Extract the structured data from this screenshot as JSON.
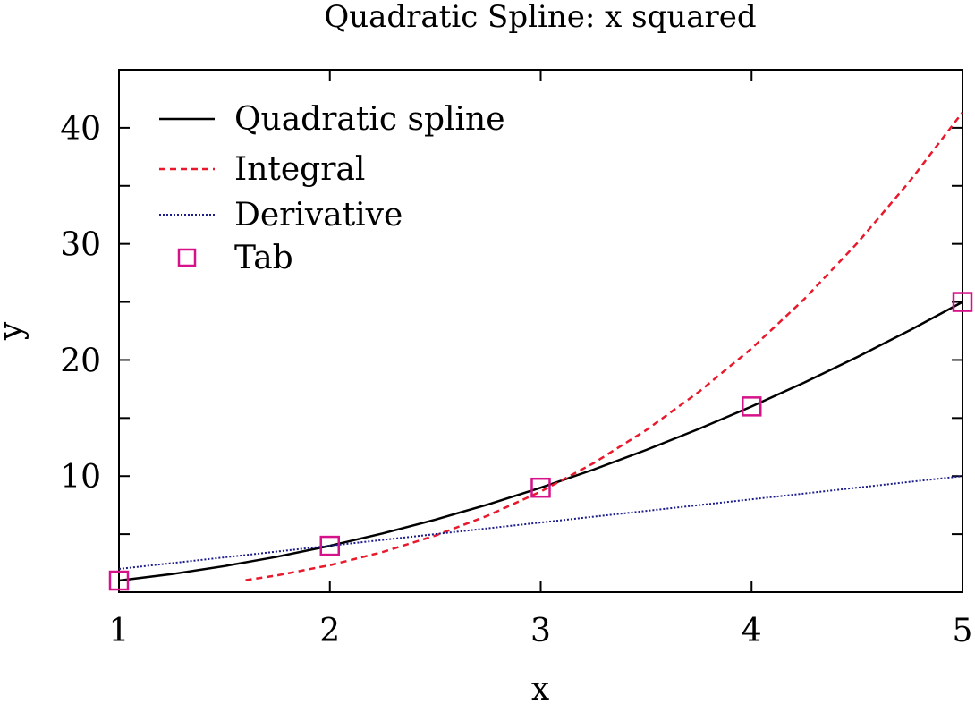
{
  "chart_data": {
    "type": "line",
    "title": "Quadratic Spline: x squared",
    "xlabel": "x",
    "ylabel": "y",
    "xlim": [
      1,
      5
    ],
    "ylim": [
      0,
      45
    ],
    "x_ticks": [
      1,
      2,
      3,
      4,
      5
    ],
    "y_ticks": [
      10,
      20,
      30,
      40
    ],
    "y_minor_ticks": [
      5,
      15,
      25,
      35
    ],
    "grid": false,
    "legend_position": "top-left",
    "series": [
      {
        "name": "Quadratic spline",
        "kind": "line",
        "color": "#000000",
        "dash": "solid",
        "x": [
          1.0,
          1.25,
          1.5,
          1.75,
          2.0,
          2.25,
          2.5,
          2.75,
          3.0,
          3.25,
          3.5,
          3.75,
          4.0,
          4.25,
          4.5,
          4.75,
          5.0
        ],
        "y": [
          1.0,
          1.56,
          2.25,
          3.06,
          4.0,
          5.06,
          6.25,
          7.56,
          9.0,
          10.56,
          12.25,
          14.06,
          16.0,
          18.06,
          20.25,
          22.56,
          25.0
        ]
      },
      {
        "name": "Integral",
        "kind": "line",
        "color": "#e8192c",
        "dash": "dashed",
        "x": [
          1.6,
          1.75,
          2.0,
          2.25,
          2.5,
          2.75,
          3.0,
          3.25,
          3.5,
          3.75,
          4.0,
          4.25,
          4.5,
          4.75,
          5.0
        ],
        "y": [
          1.03,
          1.45,
          2.33,
          3.46,
          4.88,
          6.6,
          8.67,
          11.1,
          13.96,
          17.25,
          21.0,
          25.25,
          30.04,
          35.4,
          41.33
        ]
      },
      {
        "name": "Derivative",
        "kind": "line",
        "color": "#1c1c8c",
        "dash": "dotted",
        "x": [
          1,
          5
        ],
        "y": [
          2,
          10
        ]
      },
      {
        "name": "Tab",
        "kind": "markers",
        "marker": "square",
        "color": "#d6128a",
        "x": [
          1,
          2,
          3,
          4,
          5
        ],
        "y": [
          1,
          4,
          9,
          16,
          25
        ]
      }
    ]
  }
}
